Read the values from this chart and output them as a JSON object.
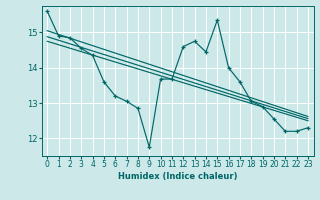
{
  "xlabel": "Humidex (Indice chaleur)",
  "ylabel": "",
  "bg_color": "#cce8e8",
  "grid_color": "#ffffff",
  "line_color": "#006666",
  "xlim": [
    -0.5,
    23.5
  ],
  "ylim": [
    11.5,
    15.75
  ],
  "yticks": [
    12,
    13,
    14,
    15
  ],
  "xticks": [
    0,
    1,
    2,
    3,
    4,
    5,
    6,
    7,
    8,
    9,
    10,
    11,
    12,
    13,
    14,
    15,
    16,
    17,
    18,
    19,
    20,
    21,
    22,
    23
  ],
  "series_main": [
    [
      0,
      15.6
    ],
    [
      1,
      14.9
    ],
    [
      2,
      14.85
    ],
    [
      3,
      14.55
    ],
    [
      4,
      14.35
    ],
    [
      5,
      13.6
    ],
    [
      6,
      13.2
    ],
    [
      7,
      13.05
    ],
    [
      8,
      12.85
    ],
    [
      9,
      11.75
    ],
    [
      10,
      13.68
    ],
    [
      11,
      13.68
    ],
    [
      12,
      14.6
    ],
    [
      13,
      14.75
    ],
    [
      14,
      14.45
    ],
    [
      15,
      15.35
    ],
    [
      16,
      14.0
    ],
    [
      17,
      13.6
    ],
    [
      18,
      13.05
    ],
    [
      19,
      12.9
    ],
    [
      20,
      12.55
    ],
    [
      21,
      12.2
    ],
    [
      22,
      12.2
    ],
    [
      23,
      12.3
    ]
  ],
  "series_line1": [
    [
      0,
      15.05
    ],
    [
      23,
      12.62
    ]
  ],
  "series_line2": [
    [
      0,
      14.88
    ],
    [
      23,
      12.56
    ]
  ],
  "series_line3": [
    [
      0,
      14.75
    ],
    [
      23,
      12.5
    ]
  ]
}
